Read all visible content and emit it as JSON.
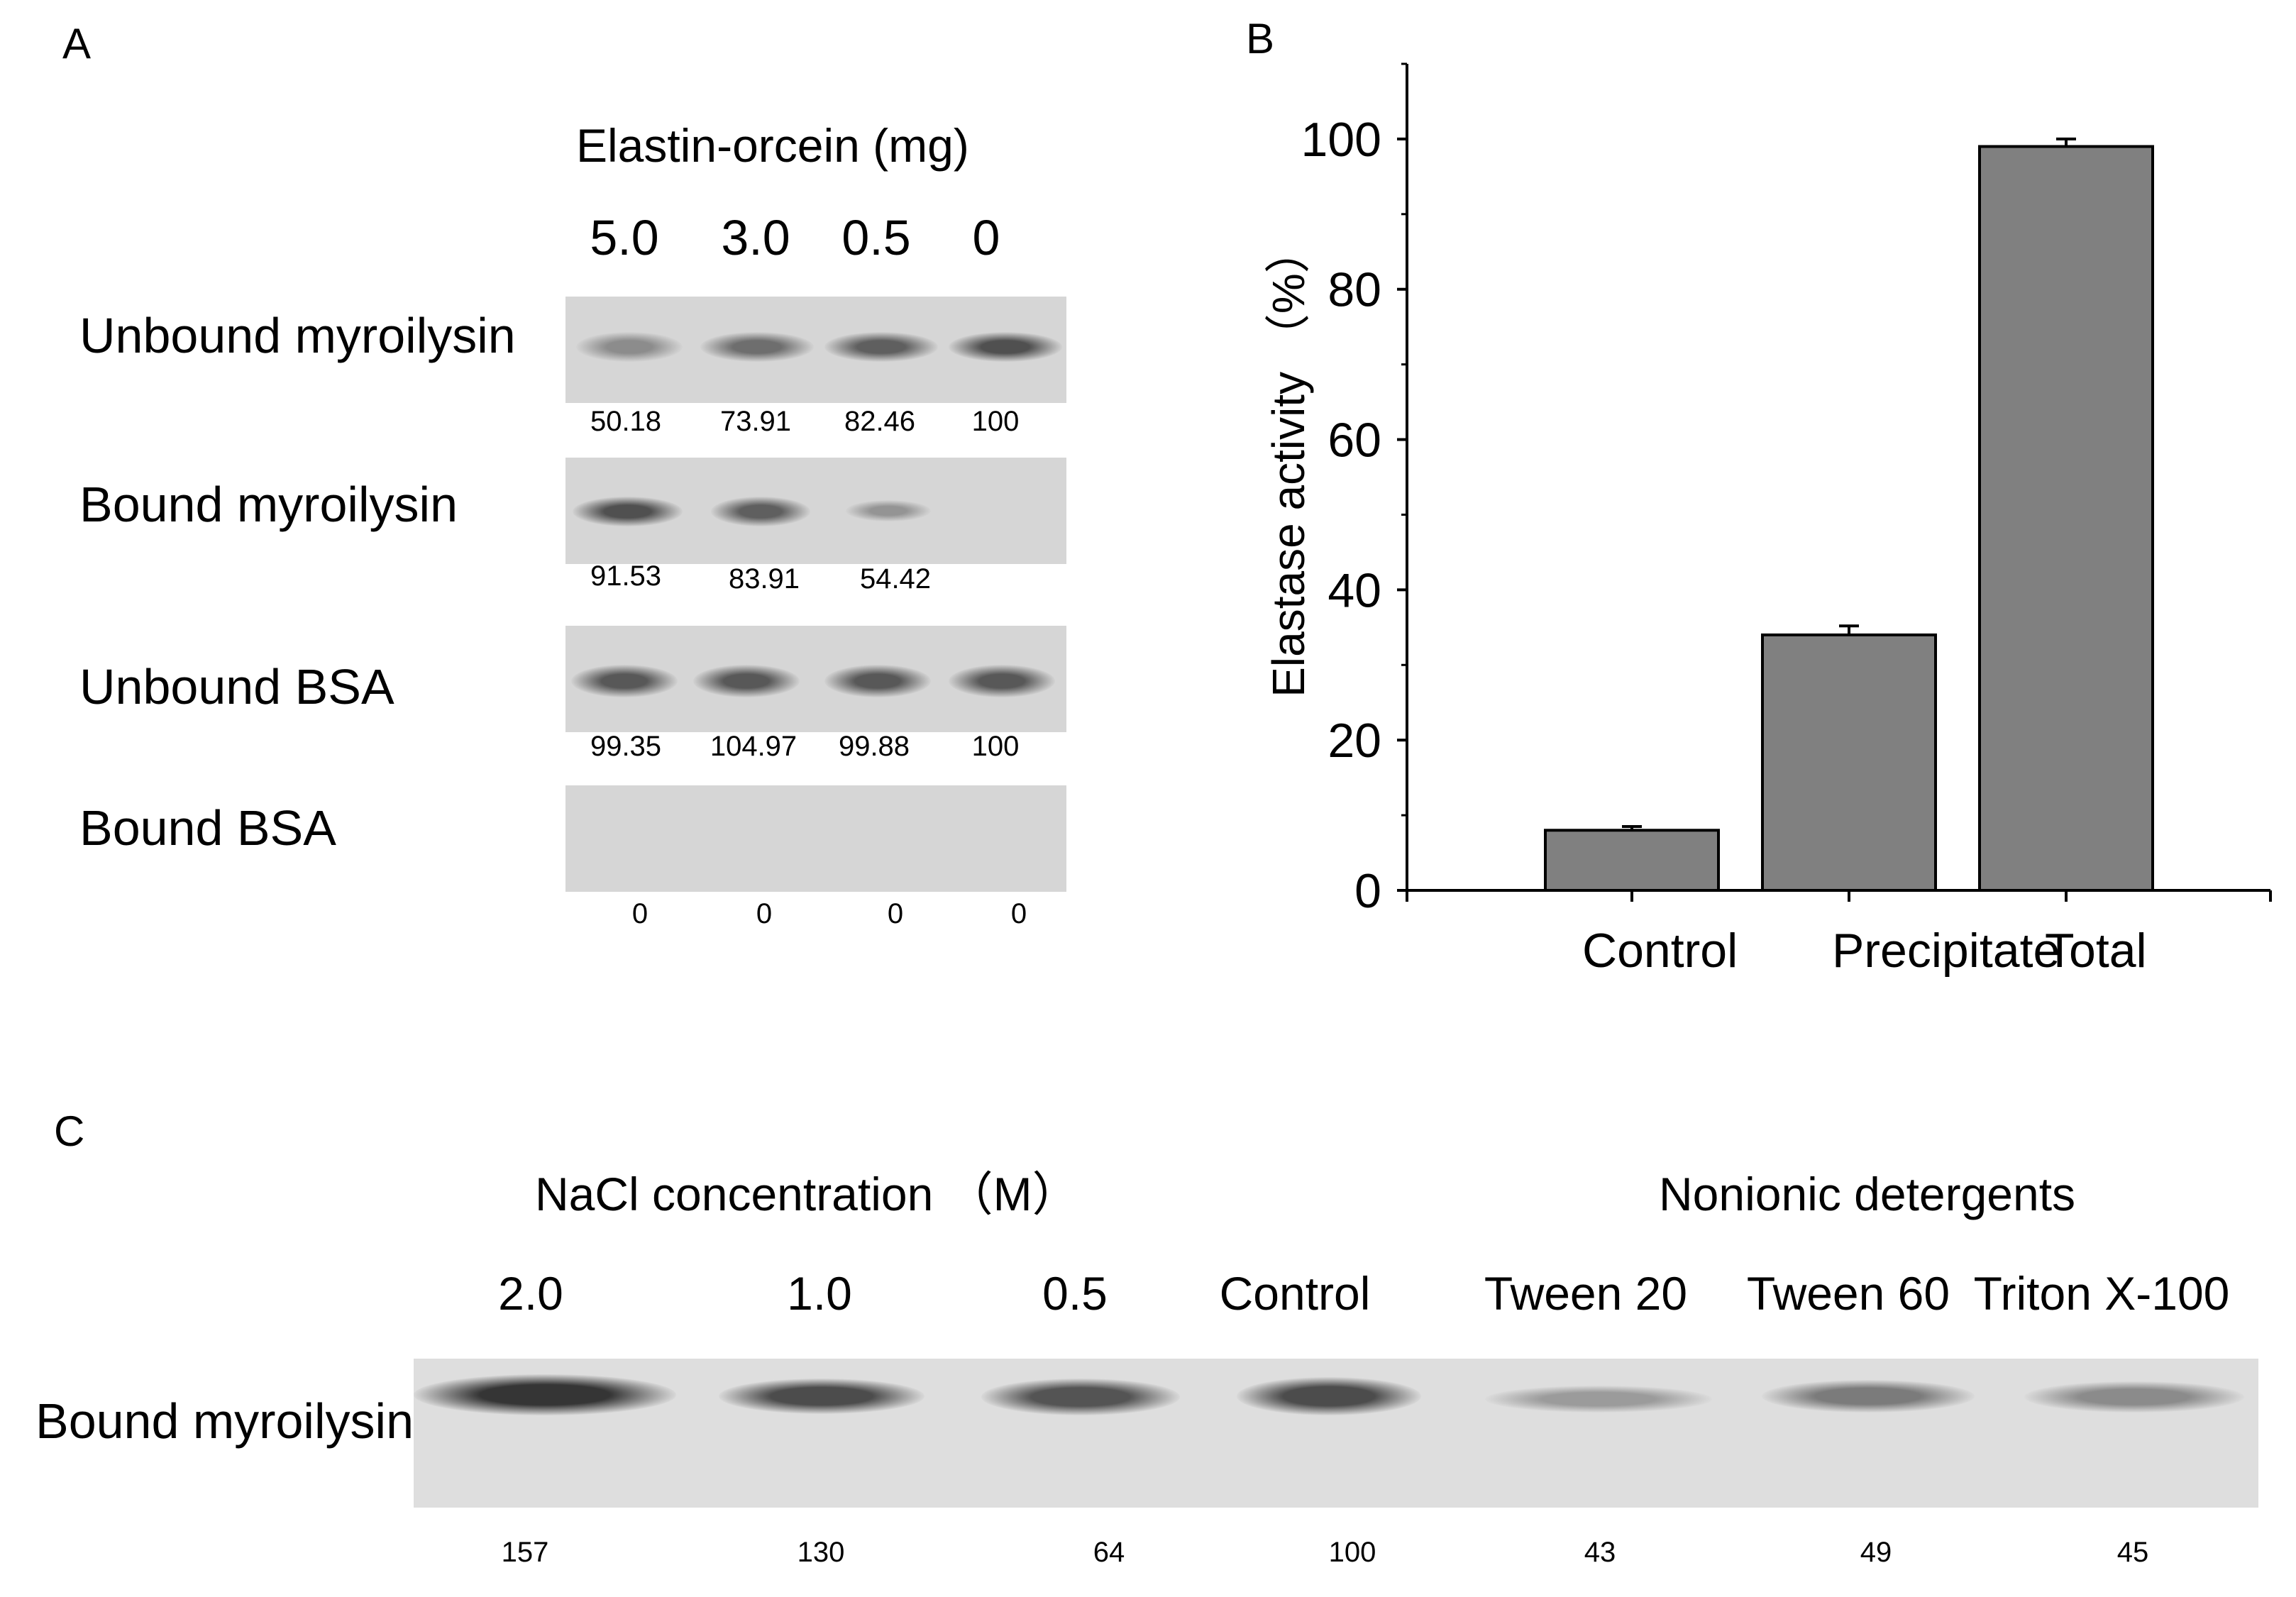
{
  "panel_a": {
    "letter": "A",
    "title": "Elastin-orcein (mg)",
    "lanes": [
      "5.0",
      "3.0",
      "0.5",
      "0"
    ],
    "rows": [
      {
        "label": "Unbound myroilysin",
        "values": [
          "50.18",
          "73.91",
          "82.46",
          "100"
        ],
        "intensity": [
          0.4,
          0.6,
          0.7,
          0.8
        ]
      },
      {
        "label": "Bound myroilysin",
        "values": [
          "91.53",
          "83.91",
          "54.42",
          ""
        ],
        "intensity": [
          0.8,
          0.7,
          0.35,
          0
        ]
      },
      {
        "label": "Unbound BSA",
        "values": [
          "99.35",
          "104.97",
          "99.88",
          "100"
        ],
        "intensity": [
          0.75,
          0.75,
          0.75,
          0.75
        ]
      },
      {
        "label": "Bound BSA",
        "values": [
          "0",
          "0",
          "0",
          "0"
        ],
        "intensity": [
          0,
          0,
          0,
          0
        ]
      }
    ]
  },
  "panel_b": {
    "letter": "B",
    "color_bar": "#808080",
    "chart_data": {
      "type": "bar",
      "categories": [
        "Control",
        "Precipitate",
        "Total"
      ],
      "values": [
        8,
        34,
        99
      ],
      "errors": [
        0.5,
        1.2,
        1.0
      ],
      "title": "",
      "xlabel": "",
      "ylabel": "Elastase activity （%）",
      "ylim": [
        0,
        110
      ],
      "yticks": [
        0,
        20,
        40,
        60,
        80,
        100
      ],
      "grid": false
    }
  },
  "panel_c": {
    "letter": "C",
    "group_nacl": "NaCl concentration （M）",
    "group_detergent": "Nonionic detergents",
    "row_label": "Bound myroilysin",
    "lanes": [
      {
        "label": "2.0",
        "value": "157",
        "intensity": 1.0
      },
      {
        "label": "1.0",
        "value": "130",
        "intensity": 0.85
      },
      {
        "label": "0.5",
        "value": "64",
        "intensity": 0.8
      },
      {
        "label": "Control",
        "value": "100",
        "intensity": 0.85
      },
      {
        "label": "Tween 20",
        "value": "43",
        "intensity": 0.35
      },
      {
        "label": "Tween 60",
        "value": "49",
        "intensity": 0.55
      },
      {
        "label": "Triton X-100",
        "value": "45",
        "intensity": 0.45
      }
    ]
  }
}
